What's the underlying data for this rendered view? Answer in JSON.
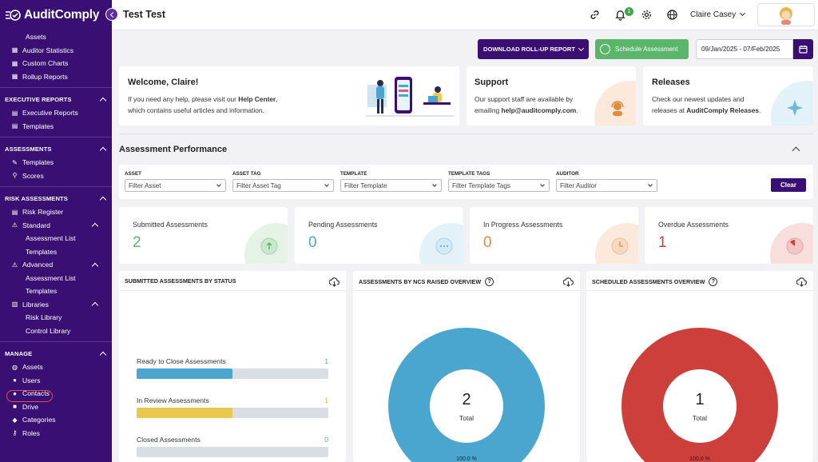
{
  "app": {
    "name": "AuditComply",
    "page_title": "Test Test"
  },
  "sidebar": {
    "top_items": [
      "Assets",
      "Auditor Statistics",
      "Custom Charts",
      "Rollup Reports"
    ],
    "executive_reports": {
      "heading": "EXECUTIVE REPORTS",
      "items": [
        "Executive Reports",
        "Templates"
      ]
    },
    "assessments": {
      "heading": "ASSESSMENTS",
      "items": [
        "Templates",
        "Scores"
      ]
    },
    "risk_assessments": {
      "heading": "RISK ASSESSMENTS",
      "risk_register": "Risk Register",
      "standard": "Standard",
      "standard_items": [
        "Assessment List",
        "Templates"
      ],
      "advanced": "Advanced",
      "advanced_items": [
        "Assessment List",
        "Templates"
      ],
      "libraries": "Libraries",
      "libraries_items": [
        "Risk Library",
        "Control Library"
      ]
    },
    "manage": {
      "heading": "MANAGE",
      "items": [
        "Assets",
        "Users",
        "Contacts",
        "Drive",
        "Categories",
        "Roles"
      ]
    }
  },
  "topbar": {
    "notification_count": "1",
    "user_name": "Claire Casey"
  },
  "actions": {
    "rollup_label": "DOWNLOAD ROLL-UP REPORT",
    "schedule_label": "Schedule Assessment",
    "date_range": "09/Jan/2025 - 07/Feb/2025"
  },
  "welcome": {
    "title": "Welcome, Claire!",
    "line1_pre": "If you need any help, please visit our ",
    "line1_link": "Help Center",
    "line1_post": ",",
    "line2": "which contains useful articles and information."
  },
  "support": {
    "title": "Support",
    "line1": "Our support staff are available by",
    "line2_pre": "emailing ",
    "line2_email": "help@auditcomply.com",
    "line2_post": "."
  },
  "releases": {
    "title": "Releases",
    "line1": "Check our newest updates and",
    "line2_pre": "releases at ",
    "line2_link": "AuditComply Releases",
    "line2_post": "."
  },
  "performance": {
    "title": "Assessment Performance",
    "filters": [
      {
        "label": "ASSET",
        "placeholder": "Filter Asset"
      },
      {
        "label": "ASSET TAG",
        "placeholder": "Filter Asset Tag"
      },
      {
        "label": "TEMPLATE",
        "placeholder": "Filter Template"
      },
      {
        "label": "TEMPLATE TAGS",
        "placeholder": "Filter Template Tags"
      },
      {
        "label": "AUDITOR",
        "placeholder": "Filter Auditor"
      }
    ],
    "clear_label": "Clear",
    "stats": [
      {
        "label": "Submitted Assessments",
        "value": "2",
        "color": "#5bb56b"
      },
      {
        "label": "Pending Assessments",
        "value": "0",
        "color": "#4aa6cf"
      },
      {
        "label": "In Progress Assessments",
        "value": "0",
        "color": "#e08a3c"
      },
      {
        "label": "Overdue Assessments",
        "value": "1",
        "color": "#cc3f3a"
      }
    ]
  },
  "panels": {
    "status": {
      "title": "SUBMITTED ASSESSMENTS BY STATUS",
      "rows": [
        {
          "label": "Ready to Close Assessments",
          "value": "1",
          "fill_fraction": 0.5,
          "color": "#4aa6cf"
        },
        {
          "label": "In Review Assessments",
          "value": "1",
          "fill_fraction": 0.5,
          "color": "#e9c84e"
        },
        {
          "label": "Closed Assessments",
          "value": "0",
          "fill_fraction": 0,
          "color": "#5bb56b"
        }
      ]
    },
    "ncs": {
      "title": "ASSESSMENTS BY NCS RAISED OVERVIEW",
      "total": "2",
      "total_label": "Total",
      "pct": "100.0 %",
      "color": "#4aa6cf"
    },
    "scheduled": {
      "title": "SCHEDULED ASSESSMENTS OVERVIEW",
      "total": "1",
      "total_label": "Total",
      "pct": "100.0 %",
      "color": "#cc3f3a"
    }
  }
}
